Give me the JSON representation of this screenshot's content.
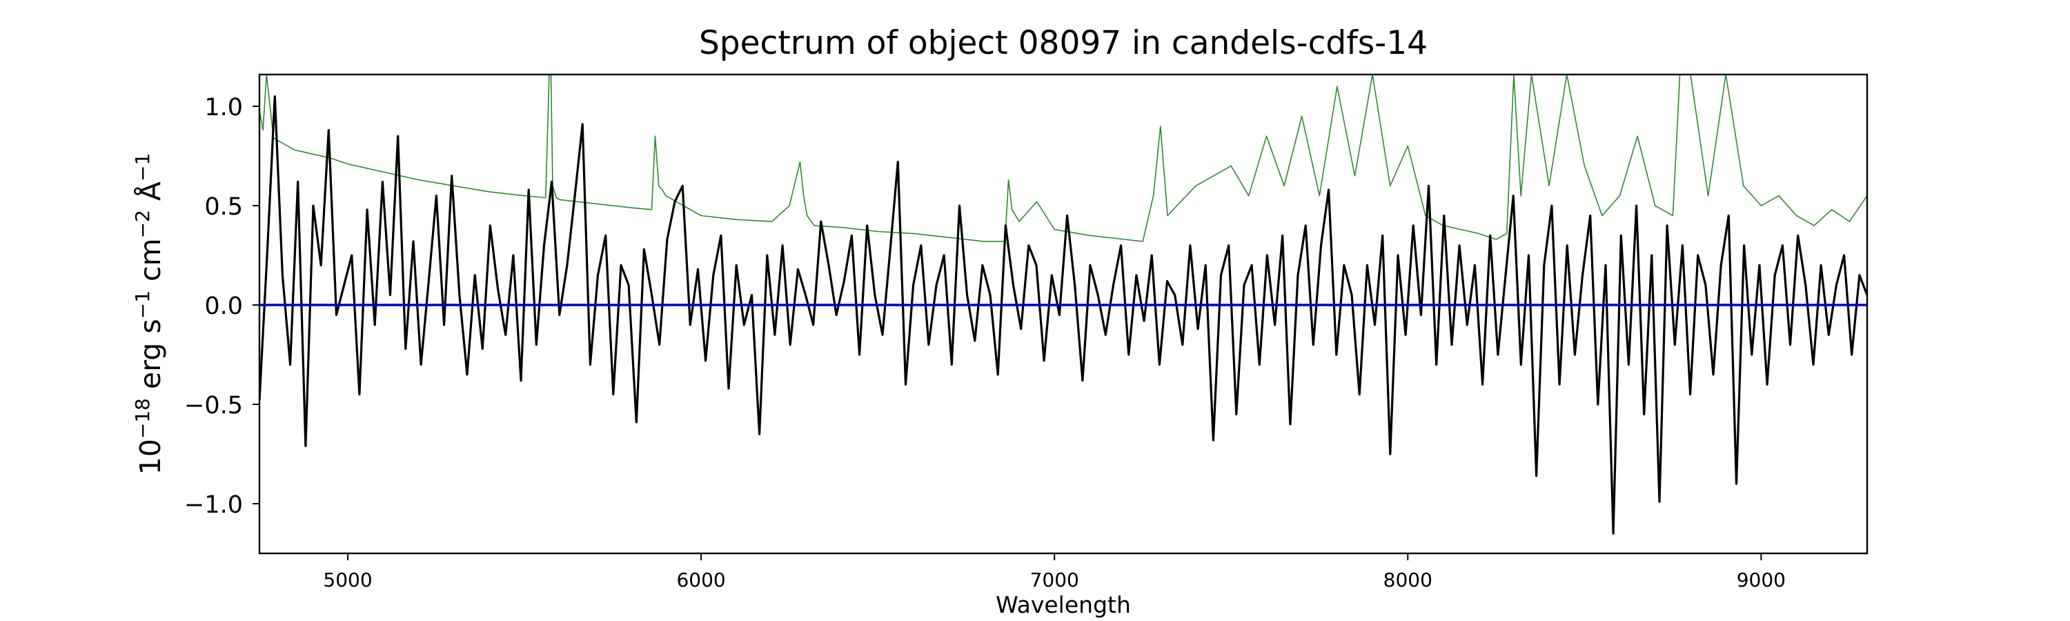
{
  "chart_data": {
    "type": "line",
    "title": "Spectrum of object 08097 in candels-cdfs-14",
    "xlabel": "Wavelength",
    "ylabel_parts": {
      "base": "10",
      "exp1": "−18",
      "erg": " erg s",
      "exp2": "−1",
      "cm": " cm",
      "exp3": "−2",
      "ang": " Å",
      "exp4": "−1"
    },
    "xlim": [
      4750,
      9300
    ],
    "ylim": [
      -1.25,
      1.16
    ],
    "xticks": [
      5000,
      6000,
      7000,
      8000,
      9000
    ],
    "yticks": [
      -1.0,
      -0.5,
      0.0,
      0.5,
      1.0
    ],
    "xtick_labels": [
      "5000",
      "6000",
      "7000",
      "8000",
      "9000"
    ],
    "ytick_labels": [
      "−1.0",
      "−0.5",
      "0.0",
      "0.5",
      "1.0"
    ],
    "grid": false,
    "colors": {
      "flux": "#000000",
      "error": "#2e8b2e",
      "model": "#0000cc"
    },
    "series": [
      {
        "key": "error",
        "style": "thin-line",
        "x": [
          4750,
          4760,
          4770,
          4790,
          4810,
          4850,
          4900,
          4950,
          5000,
          5100,
          5200,
          5300,
          5400,
          5500,
          5560,
          5570,
          5575,
          5580,
          5590,
          5600,
          5700,
          5800,
          5860,
          5870,
          5880,
          5890,
          5900,
          6000,
          6100,
          6200,
          6250,
          6280,
          6290,
          6300,
          6320,
          6400,
          6500,
          6600,
          6700,
          6800,
          6860,
          6870,
          6880,
          6900,
          6950,
          7000,
          7100,
          7200,
          7250,
          7280,
          7300,
          7320,
          7400,
          7500,
          7550,
          7600,
          7650,
          7700,
          7750,
          7800,
          7850,
          7900,
          7950,
          8000,
          8050,
          8100,
          8150,
          8200,
          8250,
          8280,
          8300,
          8320,
          8350,
          8400,
          8450,
          8500,
          8550,
          8600,
          8650,
          8700,
          8750,
          8770,
          8800,
          8850,
          8900,
          8950,
          9000,
          9050,
          9100,
          9150,
          9200,
          9250,
          9300
        ],
        "y": [
          0.98,
          0.88,
          1.16,
          0.84,
          0.82,
          0.78,
          0.76,
          0.74,
          0.71,
          0.67,
          0.63,
          0.6,
          0.57,
          0.55,
          0.54,
          1.16,
          1.16,
          0.6,
          0.54,
          0.53,
          0.51,
          0.49,
          0.48,
          0.85,
          0.6,
          0.58,
          0.55,
          0.45,
          0.43,
          0.42,
          0.5,
          0.72,
          0.55,
          0.45,
          0.4,
          0.39,
          0.37,
          0.36,
          0.34,
          0.32,
          0.32,
          0.63,
          0.48,
          0.42,
          0.52,
          0.38,
          0.35,
          0.33,
          0.32,
          0.55,
          0.9,
          0.45,
          0.6,
          0.7,
          0.55,
          0.85,
          0.6,
          0.95,
          0.55,
          1.1,
          0.65,
          1.16,
          0.6,
          0.8,
          0.45,
          0.4,
          0.38,
          0.36,
          0.33,
          0.36,
          1.16,
          0.55,
          1.16,
          0.6,
          1.16,
          0.7,
          0.45,
          0.55,
          0.85,
          0.5,
          0.45,
          1.16,
          1.16,
          0.55,
          1.16,
          0.6,
          0.5,
          0.55,
          0.45,
          0.4,
          0.48,
          0.42,
          0.55
        ]
      },
      {
        "key": "flux",
        "style": "line",
        "x_start": 4750,
        "x_end": 9300,
        "y": [
          -0.48,
          0.25,
          1.05,
          0.15,
          -0.3,
          0.62,
          -0.71,
          0.5,
          0.2,
          0.88,
          -0.05,
          0.1,
          0.25,
          -0.45,
          0.48,
          -0.1,
          0.62,
          0.05,
          0.85,
          -0.22,
          0.32,
          -0.3,
          0.12,
          0.55,
          -0.1,
          0.65,
          0.05,
          -0.35,
          0.15,
          -0.22,
          0.4,
          0.08,
          -0.15,
          0.25,
          -0.38,
          0.58,
          -0.2,
          0.3,
          0.62,
          -0.05,
          0.2,
          0.55,
          0.91,
          -0.3,
          0.15,
          0.35,
          -0.45,
          0.2,
          0.1,
          -0.59,
          0.28,
          0.05,
          -0.2,
          0.33,
          0.52,
          0.6,
          -0.1,
          0.18,
          -0.28,
          0.15,
          0.35,
          -0.42,
          0.2,
          -0.1,
          0.05,
          -0.65,
          0.25,
          -0.15,
          0.3,
          -0.2,
          0.18,
          0.05,
          -0.1,
          0.42,
          0.2,
          -0.05,
          0.12,
          0.35,
          -0.25,
          0.4,
          0.05,
          -0.15,
          0.28,
          0.72,
          -0.4,
          0.1,
          0.3,
          -0.2,
          0.1,
          0.25,
          -0.3,
          0.5,
          0.05,
          -0.18,
          0.2,
          0.05,
          -0.35,
          0.4,
          0.1,
          -0.12,
          0.3,
          0.2,
          -0.28,
          0.15,
          -0.05,
          0.45,
          0.1,
          -0.38,
          0.2,
          0.05,
          -0.15,
          0.1,
          0.3,
          -0.25,
          0.15,
          -0.08,
          0.25,
          -0.3,
          0.12,
          0.05,
          -0.2,
          0.3,
          -0.12,
          0.2,
          -0.68,
          0.15,
          0.3,
          -0.55,
          0.1,
          0.2,
          -0.3,
          0.25,
          -0.1,
          0.35,
          -0.6,
          0.15,
          0.4,
          -0.2,
          0.3,
          0.58,
          -0.25,
          0.2,
          0.05,
          -0.45,
          0.2,
          -0.1,
          0.35,
          -0.75,
          0.25,
          -0.15,
          0.4,
          -0.05,
          0.6,
          -0.3,
          0.45,
          -0.2,
          0.3,
          -0.1,
          0.2,
          -0.4,
          0.35,
          -0.25,
          0.15,
          0.55,
          -0.3,
          0.25,
          -0.86,
          0.2,
          0.5,
          -0.4,
          0.3,
          -0.25,
          0.15,
          0.45,
          -0.5,
          0.2,
          -1.15,
          0.35,
          -0.3,
          0.5,
          -0.55,
          0.25,
          -0.99,
          0.4,
          -0.2,
          0.3,
          -0.45,
          0.25,
          0.1,
          -0.35,
          0.2,
          0.45,
          -0.9,
          0.3,
          -0.25,
          0.2,
          -0.4,
          0.15,
          0.3,
          -0.2,
          0.35,
          0.1,
          -0.3,
          0.2,
          -0.15,
          0.1,
          0.25,
          -0.25,
          0.15,
          0.05
        ]
      },
      {
        "key": "model",
        "style": "line",
        "x": [
          4750,
          9300
        ],
        "y": [
          0.0,
          0.0
        ]
      }
    ]
  }
}
